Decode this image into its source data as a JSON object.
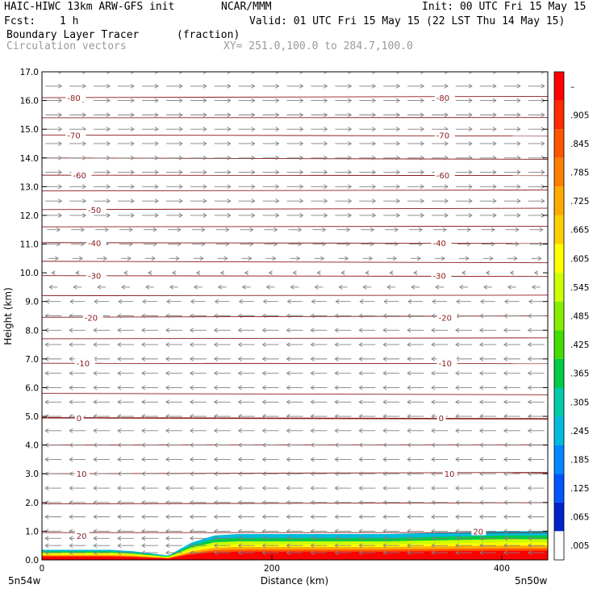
{
  "header": {
    "model": "HAIC-HIWC 13km ARW-GFS init",
    "org": "NCAR/MMM",
    "init": "Init: 00 UTC Fri 15 May 15",
    "fcst_label": "Fcst:",
    "fcst_value": "1 h",
    "valid": "Valid: 01 UTC Fri 15 May 15 (22 LST Thu 14 May 15)",
    "field": "Boundary Layer Tracer",
    "field_units": "(fraction)",
    "vectors": "Circulation vectors",
    "xy": "XY= 251.0,100.0 to 284.7,100.0"
  },
  "chart_data": {
    "type": "heatmap",
    "ylabel": "Height (km)",
    "xlabel": "Distance (km)",
    "xlim": [
      0,
      440
    ],
    "ylim": [
      0,
      17
    ],
    "x_ticks": [
      "0",
      "200",
      "400"
    ],
    "y_ticks": [
      "0.0",
      "1.0",
      "2.0",
      "3.0",
      "4.0",
      "5.0",
      "6.0",
      "7.0",
      "8.0",
      "9.0",
      "10.0",
      "11.0",
      "12.0",
      "13.0",
      "14.0",
      "15.0",
      "16.0",
      "17.0"
    ],
    "x_end_labels": {
      "left": "5n54w",
      "right": "5n50w"
    },
    "contours": {
      "color": "#8b1a1a",
      "levels": [
        20,
        15,
        10,
        5,
        0,
        -5,
        -10,
        -15,
        -20,
        -25,
        -30,
        -35,
        -40,
        -45,
        -50,
        -55,
        -60,
        -65,
        -70,
        -75,
        -80
      ],
      "heights_km": [
        0.95,
        1.95,
        3.0,
        4.0,
        4.95,
        5.8,
        6.85,
        7.7,
        8.45,
        9.2,
        9.9,
        10.4,
        11.05,
        11.6,
        12.2,
        12.85,
        13.4,
        14.0,
        14.8,
        15.4,
        16.1
      ],
      "labels": [
        {
          "text": "20",
          "x": 30,
          "y_km": 0.85
        },
        {
          "text": "20",
          "x": 375,
          "y_km": 1.0
        },
        {
          "text": "10",
          "x": 30,
          "y_km": 3.0
        },
        {
          "text": "10",
          "x": 350,
          "y_km": 3.0
        },
        {
          "text": "0",
          "x": 30,
          "y_km": 4.95
        },
        {
          "text": "0",
          "x": 345,
          "y_km": 4.95
        },
        {
          "text": "-10",
          "x": 30,
          "y_km": 6.85
        },
        {
          "text": "-10",
          "x": 345,
          "y_km": 6.85
        },
        {
          "text": "-20",
          "x": 37,
          "y_km": 8.45
        },
        {
          "text": "-20",
          "x": 345,
          "y_km": 8.45
        },
        {
          "text": "-30",
          "x": 40,
          "y_km": 9.9
        },
        {
          "text": "-30",
          "x": 340,
          "y_km": 9.9
        },
        {
          "text": "-40",
          "x": 40,
          "y_km": 11.05
        },
        {
          "text": "-40",
          "x": 340,
          "y_km": 11.05
        },
        {
          "text": "-50",
          "x": 40,
          "y_km": 12.2
        },
        {
          "text": "-60",
          "x": 27,
          "y_km": 13.4
        },
        {
          "text": "-60",
          "x": 343,
          "y_km": 13.4
        },
        {
          "text": "-70",
          "x": 22,
          "y_km": 14.8
        },
        {
          "text": "-70",
          "x": 343,
          "y_km": 14.8
        },
        {
          "text": "-80",
          "x": 22,
          "y_km": 16.1
        },
        {
          "text": "-80",
          "x": 343,
          "y_km": 16.1
        }
      ]
    },
    "tracer_fill": {
      "note_values": "fraction along section, approx. top height in km per distance",
      "distance_km": [
        0,
        20,
        40,
        60,
        80,
        100,
        110,
        130,
        150,
        170,
        200,
        250,
        300,
        350,
        400,
        440
      ],
      "top_km": [
        0.35,
        0.35,
        0.35,
        0.35,
        0.3,
        0.2,
        0.15,
        0.6,
        0.85,
        0.9,
        0.9,
        0.9,
        0.9,
        0.95,
        1.0,
        1.0
      ]
    },
    "vectors": {
      "color": "#808080",
      "levels_km": [
        0.25,
        0.5,
        0.75,
        1.0,
        1.5,
        2.0,
        2.5,
        3.0,
        3.5,
        4.0,
        4.5,
        5.0,
        5.5,
        6.0,
        6.5,
        7.0,
        7.5,
        8.0,
        8.5,
        9.0,
        9.5,
        10.0,
        10.5,
        11.0,
        11.5,
        12.0,
        12.5,
        13.0,
        13.5,
        14.0,
        14.5,
        15.0,
        15.5,
        16.0,
        16.5,
        17.0
      ],
      "u": [
        -1,
        -1,
        -1,
        -1,
        -1,
        -1,
        -1,
        -1,
        -1,
        -1,
        -1,
        -1,
        -1,
        -1,
        -1,
        -1,
        -1,
        -1,
        -1,
        -0.9,
        -0.5,
        -0.2,
        0.6,
        0.8,
        0.8,
        1,
        1,
        1,
        1,
        1,
        1,
        1,
        1,
        1,
        1,
        1
      ]
    },
    "colorbar": {
      "labels": [
        "–",
        ".905",
        ".845",
        ".785",
        ".725",
        ".665",
        ".605",
        ".545",
        ".485",
        ".425",
        ".365",
        ".305",
        ".245",
        ".185",
        ".125",
        ".065",
        ".005"
      ],
      "colors": [
        "#ff0000",
        "#ff2a00",
        "#ff5500",
        "#ff8000",
        "#ffaa00",
        "#ffd000",
        "#ffff00",
        "#ccff00",
        "#88ee00",
        "#44dd00",
        "#00cc44",
        "#00ccaa",
        "#00bbdd",
        "#0088ff",
        "#0055ff",
        "#0022cc",
        "#ffffff"
      ]
    }
  }
}
